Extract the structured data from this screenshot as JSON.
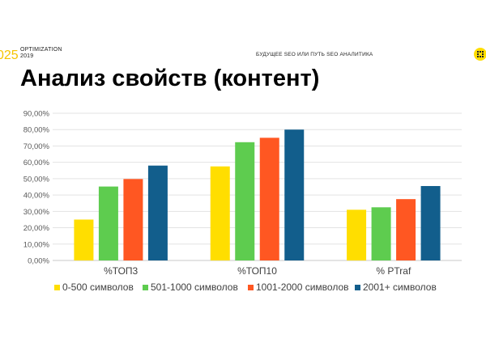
{
  "header": {
    "brand_number": "025",
    "brand_line1": "OPTIMIZATION",
    "brand_line2": "2019",
    "center_text": "БУДУЩЕЕ SEO ИЛИ ПУТЬ SEO АНАЛИТИКА",
    "title": "Анализ свойств (контент)"
  },
  "colors": {
    "accent": "#ffde00",
    "series": [
      "#ffde00",
      "#5ecc4f",
      "#ff5722",
      "#125e8c"
    ]
  },
  "chart_data": {
    "type": "bar",
    "categories": [
      "%ТОП3",
      "%ТОП10",
      "% PTraf"
    ],
    "series": [
      {
        "name": "0-500 символов",
        "values": [
          0.25,
          0.575,
          0.31
        ]
      },
      {
        "name": "501-1000 символов",
        "values": [
          0.452,
          0.723,
          0.325
        ]
      },
      {
        "name": "1001-2000 символов",
        "values": [
          0.498,
          0.75,
          0.375
        ]
      },
      {
        "name": "2001+ символов",
        "values": [
          0.58,
          0.8,
          0.455
        ]
      }
    ],
    "ylim": [
      0,
      0.9
    ],
    "yticks": [
      "0,00%",
      "10,00%",
      "20,00%",
      "30,00%",
      "40,00%",
      "50,00%",
      "60,00%",
      "70,00%",
      "80,00%",
      "90,00%"
    ],
    "grid": true,
    "legend": "bottom"
  }
}
